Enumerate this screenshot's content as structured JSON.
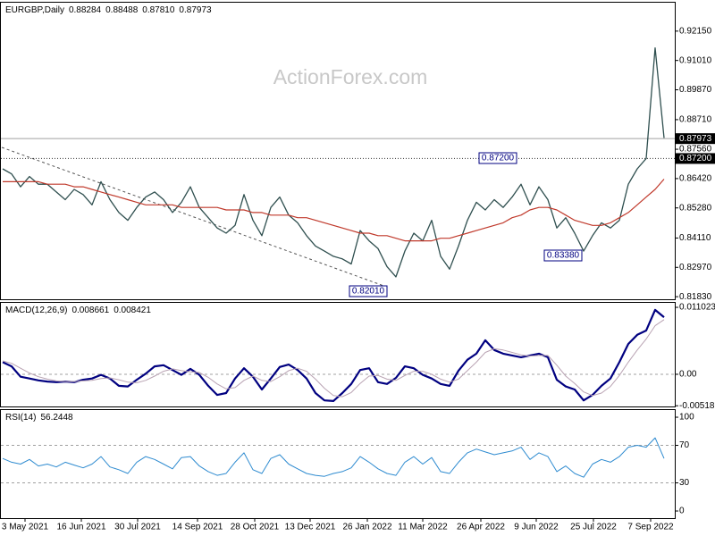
{
  "chart_data": [
    {
      "type": "line",
      "title": "EURGBP,Daily",
      "ohlc": [
        "0.88284",
        "0.88488",
        "0.87810",
        "0.87973"
      ],
      "watermark": "ActionForex.com",
      "xlim": [
        -0.3,
        75.2
      ],
      "ylim": [
        0.8173,
        0.9329
      ],
      "yticks": [
        {
          "value": 0.9215,
          "label": "0.92150"
        },
        {
          "value": 0.9101,
          "label": "0.91010"
        },
        {
          "value": 0.8987,
          "label": "0.89870"
        },
        {
          "value": 0.8871,
          "label": "0.88710"
        },
        {
          "value": 0.8756,
          "label": "0.87560"
        },
        {
          "value": 0.8642,
          "label": "0.86420"
        },
        {
          "value": 0.8528,
          "label": "0.85280"
        },
        {
          "value": 0.8411,
          "label": "0.84110"
        },
        {
          "value": 0.8297,
          "label": "0.82970"
        },
        {
          "value": 0.8183,
          "label": "0.81830"
        }
      ],
      "horizontal_lines": [
        {
          "value": 0.87973,
          "label": "0.87973",
          "style": "solid",
          "color": "#a0a0a0"
        },
        {
          "value": 0.872,
          "label": "0.87200",
          "style": "dotted",
          "color": "#303030"
        }
      ],
      "annotations": [
        {
          "value": 0.872,
          "label": "0.87200"
        },
        {
          "value": 0.8201,
          "label": "0.82010"
        },
        {
          "value": 0.8338,
          "label": "0.83380"
        }
      ],
      "series": [
        {
          "name": "EURGBP",
          "color": "#2f4f4f",
          "width": 1.3,
          "values": [
            0.868,
            0.866,
            0.861,
            0.865,
            0.862,
            0.862,
            0.859,
            0.856,
            0.86,
            0.858,
            0.854,
            0.863,
            0.856,
            0.851,
            0.848,
            0.853,
            0.857,
            0.859,
            0.856,
            0.851,
            0.855,
            0.861,
            0.853,
            0.849,
            0.845,
            0.843,
            0.846,
            0.858,
            0.848,
            0.842,
            0.853,
            0.857,
            0.85,
            0.847,
            0.842,
            0.838,
            0.836,
            0.834,
            0.833,
            0.831,
            0.844,
            0.84,
            0.837,
            0.83,
            0.826,
            0.836,
            0.843,
            0.84,
            0.848,
            0.834,
            0.829,
            0.838,
            0.848,
            0.855,
            0.852,
            0.856,
            0.853,
            0.857,
            0.862,
            0.854,
            0.861,
            0.856,
            0.845,
            0.849,
            0.843,
            0.836,
            0.842,
            0.847,
            0.845,
            0.848,
            0.862,
            0.868,
            0.872,
            0.915,
            0.88
          ]
        },
        {
          "name": "MA",
          "color": "#c0392b",
          "width": 1.2,
          "values": [
            0.863,
            0.863,
            0.863,
            0.863,
            0.863,
            0.862,
            0.862,
            0.862,
            0.861,
            0.861,
            0.86,
            0.859,
            0.858,
            0.857,
            0.856,
            0.855,
            0.854,
            0.854,
            0.854,
            0.854,
            0.853,
            0.853,
            0.853,
            0.853,
            0.853,
            0.852,
            0.852,
            0.852,
            0.851,
            0.851,
            0.85,
            0.85,
            0.85,
            0.849,
            0.849,
            0.848,
            0.847,
            0.846,
            0.845,
            0.844,
            0.843,
            0.843,
            0.842,
            0.842,
            0.841,
            0.84,
            0.84,
            0.84,
            0.84,
            0.841,
            0.841,
            0.842,
            0.843,
            0.844,
            0.845,
            0.846,
            0.847,
            0.849,
            0.85,
            0.852,
            0.853,
            0.853,
            0.852,
            0.85,
            0.848,
            0.847,
            0.846,
            0.846,
            0.847,
            0.849,
            0.851,
            0.854,
            0.857,
            0.86,
            0.864
          ]
        }
      ]
    },
    {
      "type": "line",
      "title": "MACD(12,26,9)",
      "indicator_values": [
        "0.008661",
        "0.008421"
      ],
      "xlim": [
        -0.3,
        75.2
      ],
      "ylim": [
        -0.0053,
        0.01191
      ],
      "yticks": [
        0.011023,
        {
          "value": 0,
          "label": "0.00"
        },
        -0.005182
      ],
      "level_lines": [
        0
      ],
      "series": [
        {
          "name": "MACD",
          "color": "#000080",
          "width": 2.2,
          "values": [
            0.002,
            0.0013,
            -0.0004,
            -0.0007,
            -0.001,
            -0.0012,
            -0.0013,
            -0.0012,
            -0.0013,
            -0.0009,
            -0.0007,
            -0.0001,
            -0.0007,
            -0.0019,
            -0.002,
            -0.0009,
            0.0001,
            0.0013,
            0.0015,
            0.0007,
            -0.0001,
            0.0009,
            -0.0001,
            -0.0019,
            -0.0034,
            -0.0031,
            -0.0007,
            0.001,
            -0.0004,
            -0.0025,
            -0.0007,
            0.0012,
            0.0016,
            0.0007,
            -0.0007,
            -0.0031,
            -0.0043,
            -0.0044,
            -0.0031,
            -0.0016,
            0.0007,
            0.001,
            -0.0013,
            -0.0016,
            -0.0006,
            0.0013,
            0.001,
            -0.0001,
            -0.0007,
            -0.0016,
            -0.0019,
            0.0006,
            0.0024,
            0.0034,
            0.0056,
            0.004,
            0.0034,
            0.0031,
            0.0028,
            0.0031,
            0.0034,
            0.0028,
            -0.0009,
            -0.002,
            -0.0025,
            -0.0043,
            -0.0034,
            -0.0019,
            -0.0007,
            0.002,
            0.005,
            0.0065,
            0.0072,
            0.0106,
            0.0094
          ]
        },
        {
          "name": "Signal",
          "color": "#b9a3b3",
          "width": 1,
          "values": [
            0.0022,
            0.0018,
            0.001,
            0.0002,
            -0.0004,
            -0.0008,
            -0.0011,
            -0.0012,
            -0.0012,
            -0.0011,
            -0.001,
            -0.0007,
            -0.0006,
            -0.0009,
            -0.0013,
            -0.0014,
            -0.001,
            -0.0003,
            0.0005,
            0.0009,
            0.0006,
            0.0004,
            0.0003,
            -0.0005,
            -0.0016,
            -0.0024,
            -0.0022,
            -0.001,
            -0.0003,
            -0.001,
            -0.0012,
            -0.0004,
            0.0006,
            0.001,
            0.0005,
            -0.0008,
            -0.0023,
            -0.0035,
            -0.0037,
            -0.003,
            -0.0015,
            -0.0003,
            -0.0002,
            -0.0008,
            -0.001,
            -0.0002,
            0.0005,
            0.0005,
            0.0,
            -0.0008,
            -0.0013,
            -0.0008,
            0.0006,
            0.002,
            0.0036,
            0.0042,
            0.004,
            0.0036,
            0.0032,
            0.003,
            0.0031,
            0.0031,
            0.0015,
            -0.0003,
            -0.0015,
            -0.0029,
            -0.0035,
            -0.0031,
            -0.002,
            -0.0002,
            0.002,
            0.004,
            0.0058,
            0.008,
            0.009
          ]
        }
      ]
    },
    {
      "type": "line",
      "title": "RSI(14)",
      "indicator_values": [
        "56.2448"
      ],
      "xlim": [
        -0.3,
        75.2
      ],
      "ylim": [
        -7.6,
        108.6
      ],
      "yticks": [
        100,
        70,
        30,
        0
      ],
      "level_lines": [
        70,
        30
      ],
      "xticks": [
        {
          "value": 2.5,
          "label": "3 May 2021"
        },
        {
          "value": 8.8,
          "label": "16 Jun 2021"
        },
        {
          "value": 15.1,
          "label": "30 Jul 2021"
        },
        {
          "value": 21.8,
          "label": "14 Sep 2021"
        },
        {
          "value": 28.2,
          "label": "28 Oct 2021"
        },
        {
          "value": 34.4,
          "label": "13 Dec 2021"
        },
        {
          "value": 40.8,
          "label": "26 Jan 2022"
        },
        {
          "value": 47,
          "label": "11 Mar 2022"
        },
        {
          "value": 53.5,
          "label": "26 Apr 2022"
        },
        {
          "value": 59.7,
          "label": "9 Jun 2022"
        },
        {
          "value": 66.1,
          "label": "25 Jul 2022"
        },
        {
          "value": 72.5,
          "label": "7 Sep 2022"
        }
      ],
      "series": [
        {
          "name": "RSI",
          "color": "#2e8bd0",
          "width": 1,
          "values": [
            56,
            52,
            50,
            55,
            48,
            50,
            47,
            52,
            49,
            46,
            50,
            58,
            47,
            44,
            40,
            52,
            58,
            55,
            50,
            45,
            57,
            58,
            48,
            42,
            38,
            40,
            52,
            62,
            44,
            40,
            56,
            60,
            50,
            45,
            40,
            38,
            37,
            40,
            42,
            46,
            58,
            52,
            45,
            40,
            38,
            52,
            58,
            50,
            57,
            42,
            40,
            52,
            62,
            66,
            63,
            60,
            62,
            64,
            68,
            55,
            62,
            58,
            42,
            48,
            40,
            36,
            50,
            55,
            52,
            58,
            68,
            70,
            68,
            78,
            56
          ]
        }
      ]
    }
  ]
}
